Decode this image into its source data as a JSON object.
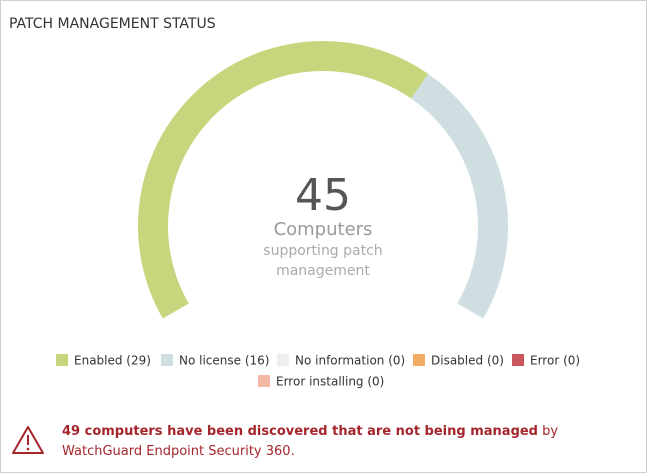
{
  "chart_data": {
    "type": "gauge",
    "title": "PATCH MANAGEMENT STATUS",
    "total": 45,
    "center_label": "Computers",
    "center_sublabel": [
      "supporting patch",
      "management"
    ],
    "categories": [
      "Enabled (29)",
      "No license (16)",
      "No information (0)",
      "Disabled (0)",
      "Error (0)",
      "Error installing (0)"
    ],
    "values": [
      29,
      16,
      0,
      0,
      0,
      0
    ],
    "colors": [
      "#c5d67d",
      "#cfdee1",
      "#eeeeee",
      "#f3ac66",
      "#c8575b",
      "#f2b8a4"
    ]
  },
  "warning": {
    "highlight": "49 computers have been discovered that are not being managed",
    "text": " by WatchGuard Endpoint Security 360."
  }
}
